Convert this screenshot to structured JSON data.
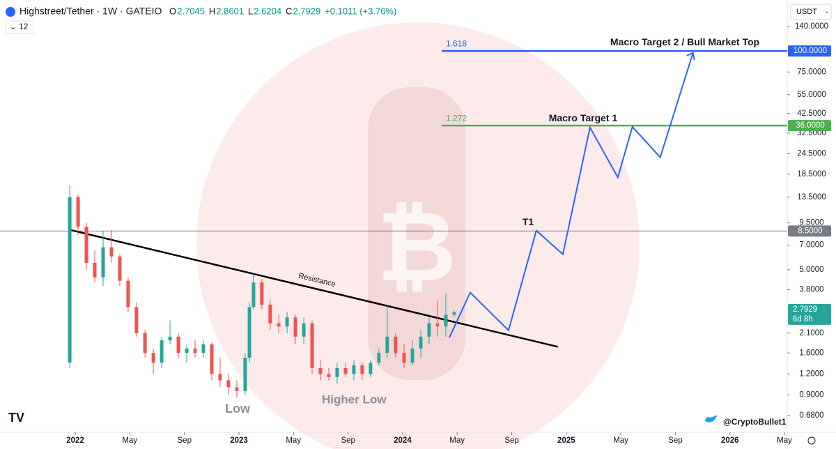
{
  "chart_data": {
    "type": "candlestick",
    "symbol": "Highstreet/Tether · 1W · GATEIO",
    "ohlc_header": [
      {
        "label": "O",
        "value": "2.7045"
      },
      {
        "label": "H",
        "value": "2.8601"
      },
      {
        "label": "L",
        "value": "2.6204"
      },
      {
        "label": "C",
        "value": "2.7929"
      }
    ],
    "change": "+0.1011 (+3.76%)",
    "interval_count": "12",
    "currency": "USDT",
    "author": "@CryptoBullet1",
    "log_scale": true,
    "xlim": [
      2021.54,
      2026.35
    ],
    "ylim": [
      0.54,
      201
    ],
    "xticks": [
      2022,
      {
        "value": 2022.333,
        "label": "May"
      },
      {
        "value": 2022.667,
        "label": "Sep"
      },
      2023,
      {
        "value": 2023.333,
        "label": "May"
      },
      {
        "value": 2023.667,
        "label": "Sep"
      },
      2024,
      {
        "value": 2024.333,
        "label": "May"
      },
      {
        "value": 2024.667,
        "label": "Sep"
      },
      2025,
      {
        "value": 2025.333,
        "label": "May"
      },
      {
        "value": 2025.667,
        "label": "Sep"
      },
      2026,
      {
        "value": 2026.333,
        "label": "May"
      }
    ],
    "yticks": [
      {
        "value": 140,
        "label": "140.0000"
      },
      {
        "value": 75,
        "label": "75.0000"
      },
      {
        "value": 55,
        "label": "55.0000"
      },
      {
        "value": 42.5,
        "label": "42.5000"
      },
      {
        "value": 32.5,
        "label": "32.5000"
      },
      {
        "value": 24.5,
        "label": "24.5000"
      },
      {
        "value": 18.5,
        "label": "18.5000"
      },
      {
        "value": 13.5,
        "label": "13.5000"
      },
      {
        "value": 9.5,
        "label": "9.5000"
      },
      {
        "value": 7,
        "label": "7.0000"
      },
      {
        "value": 5,
        "label": "5.0000"
      },
      {
        "value": 3.8,
        "label": "3.8000"
      },
      {
        "value": 2.1,
        "label": "2.1000"
      },
      {
        "value": 1.6,
        "label": "1.6000"
      },
      {
        "value": 1.2,
        "label": "1.2000"
      },
      {
        "value": 0.9,
        "label": "0.9000"
      },
      {
        "value": 0.68,
        "label": "0.6800"
      }
    ],
    "up_color": "#26a69a",
    "down_color": "#ef5350",
    "x": [
      2021.966,
      2022.017,
      2022.068,
      2022.119,
      2022.17,
      2022.221,
      2022.272,
      2022.323,
      2022.374,
      2022.426,
      2022.477,
      2022.528,
      2022.579,
      2022.63,
      2022.681,
      2022.732,
      2022.783,
      2022.834,
      2022.885,
      2022.936,
      2022.987,
      2023.038,
      2023.064,
      2023.089,
      2023.14,
      2023.191,
      2023.243,
      2023.294,
      2023.345,
      2023.396,
      2023.447,
      2023.498,
      2023.549,
      2023.6,
      2023.651,
      2023.702,
      2023.753,
      2023.804,
      2023.855,
      2023.906,
      2023.957,
      2024.009,
      2024.06,
      2024.111,
      2024.162,
      2024.213,
      2024.264,
      2024.315
    ],
    "open": [
      1.4,
      13.5,
      9,
      5.5,
      4.5,
      6.8,
      6.0,
      4.3,
      3.0,
      2.1,
      1.6,
      1.4,
      1.9,
      2.0,
      1.6,
      1.7,
      1.6,
      1.8,
      1.2,
      1.1,
      1.0,
      0.95,
      1.5,
      3.0,
      4.2,
      3.1,
      2.4,
      2.3,
      2.6,
      2.0,
      2.4,
      1.3,
      1.2,
      1.15,
      1.3,
      1.2,
      1.35,
      1.2,
      1.4,
      1.6,
      2.0,
      1.6,
      1.4,
      1.7,
      2.0,
      2.4,
      2.3,
      2.7045
    ],
    "high": [
      16,
      14,
      9.5,
      6.5,
      8.5,
      8.6,
      6.2,
      4.5,
      3.2,
      2.2,
      1.7,
      2.0,
      2.5,
      2.1,
      1.8,
      1.9,
      1.9,
      1.85,
      1.5,
      1.2,
      1.1,
      1.6,
      3.2,
      4.8,
      4.4,
      3.3,
      2.7,
      2.8,
      2.7,
      2.6,
      2.5,
      1.45,
      1.3,
      1.4,
      1.4,
      1.45,
      1.4,
      1.45,
      1.7,
      3.1,
      2.1,
      1.8,
      1.9,
      2.2,
      2.6,
      3.3,
      3.6,
      2.8601
    ],
    "low": [
      1.3,
      8,
      5,
      4.2,
      4.0,
      5.5,
      4.0,
      2.8,
      2.0,
      1.5,
      1.2,
      1.3,
      1.8,
      1.5,
      1.4,
      1.5,
      1.5,
      1.1,
      1.0,
      0.9,
      0.87,
      0.9,
      1.4,
      2.9,
      2.9,
      2.2,
      2.1,
      2.1,
      1.8,
      1.8,
      1.2,
      1.1,
      1.1,
      1.05,
      1.15,
      1.1,
      1.1,
      1.15,
      1.35,
      1.5,
      1.5,
      1.3,
      1.35,
      1.5,
      1.8,
      2.0,
      2.0,
      2.6204
    ],
    "close": [
      13.5,
      9,
      5.5,
      4.5,
      6.8,
      6.0,
      4.3,
      3.0,
      2.1,
      1.6,
      1.4,
      1.9,
      2.0,
      1.6,
      1.7,
      1.6,
      1.8,
      1.2,
      1.1,
      1.0,
      0.95,
      1.5,
      3.0,
      4.2,
      3.1,
      2.4,
      2.3,
      2.6,
      2.0,
      2.4,
      1.3,
      1.2,
      1.15,
      1.3,
      1.2,
      1.35,
      1.2,
      1.4,
      1.6,
      2.0,
      1.6,
      1.4,
      1.7,
      2.0,
      2.4,
      2.3,
      2.7,
      2.7929
    ],
    "last_price": {
      "value": 2.7929,
      "label": "2.7929",
      "countdown": "6d 8h"
    },
    "levels": [
      {
        "value": 100,
        "label": "100.0000",
        "color": "#2962ff",
        "fib": "1.618",
        "name": "Macro Target 2 / Bull Market Top"
      },
      {
        "value": 36,
        "label": "36.0000",
        "color": "#4caf50",
        "fib": "1.272",
        "name": "Macro Target 1"
      },
      {
        "value": 8.5,
        "label": "8.5000",
        "color": "#787b86",
        "name": "T1"
      }
    ],
    "resistance": {
      "label": "Resistance",
      "x": [
        2021.974,
        2024.949
      ],
      "y": [
        8.6,
        1.74
      ]
    },
    "projection": {
      "color": "#2962ff",
      "x": [
        2024.285,
        2024.413,
        2024.647,
        2024.817,
        2024.979,
        2025.145,
        2025.315,
        2025.404,
        2025.574,
        2025.774
      ],
      "y": [
        1.97,
        3.66,
        2.18,
        8.55,
        6.18,
        35.1,
        17.7,
        35.4,
        23.3,
        97.4
      ]
    },
    "annotations": [
      "Low",
      "Higher Low"
    ]
  }
}
